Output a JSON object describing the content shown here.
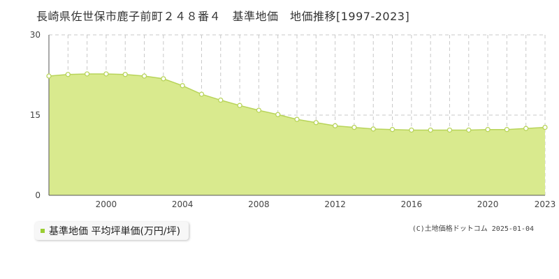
{
  "page": {
    "title": "長崎県佐世保市鹿子前町２４８番４　基準地価　地価推移[1997-2023]",
    "credit": "(C)土地価格ドットコム 2025-01-04"
  },
  "legend": {
    "label": "基準地価 平均坪単価(万円/坪)"
  },
  "colors": {
    "fill": "#d9ea8e",
    "line": "#b8d45a",
    "marker_stroke": "#b8d45a",
    "marker_fill": "#ffffff",
    "legend_marker": "#9acd32",
    "grid": "#c8c8c8"
  },
  "chart_data": {
    "type": "area",
    "x": [
      1997,
      1998,
      1999,
      2000,
      2001,
      2002,
      2003,
      2004,
      2005,
      2006,
      2007,
      2008,
      2009,
      2010,
      2011,
      2012,
      2013,
      2014,
      2015,
      2016,
      2017,
      2018,
      2019,
      2020,
      2021,
      2022,
      2023
    ],
    "series": [
      {
        "name": "基準地価 平均坪単価(万円/坪)",
        "values": [
          22.3,
          22.6,
          22.7,
          22.7,
          22.6,
          22.3,
          21.8,
          20.5,
          18.9,
          17.8,
          16.8,
          15.9,
          15.1,
          14.2,
          13.6,
          13.0,
          12.7,
          12.4,
          12.3,
          12.2,
          12.2,
          12.2,
          12.2,
          12.3,
          12.3,
          12.5,
          12.7
        ]
      }
    ],
    "xlim": [
      1997,
      2023
    ],
    "ylim": [
      0,
      30
    ],
    "y_ticks": [
      0,
      15,
      30
    ],
    "x_ticks": [
      2000,
      2004,
      2008,
      2012,
      2016,
      2020,
      2023
    ],
    "xlabel": "",
    "ylabel": "",
    "grid": true,
    "legend_position": "bottom-left"
  }
}
